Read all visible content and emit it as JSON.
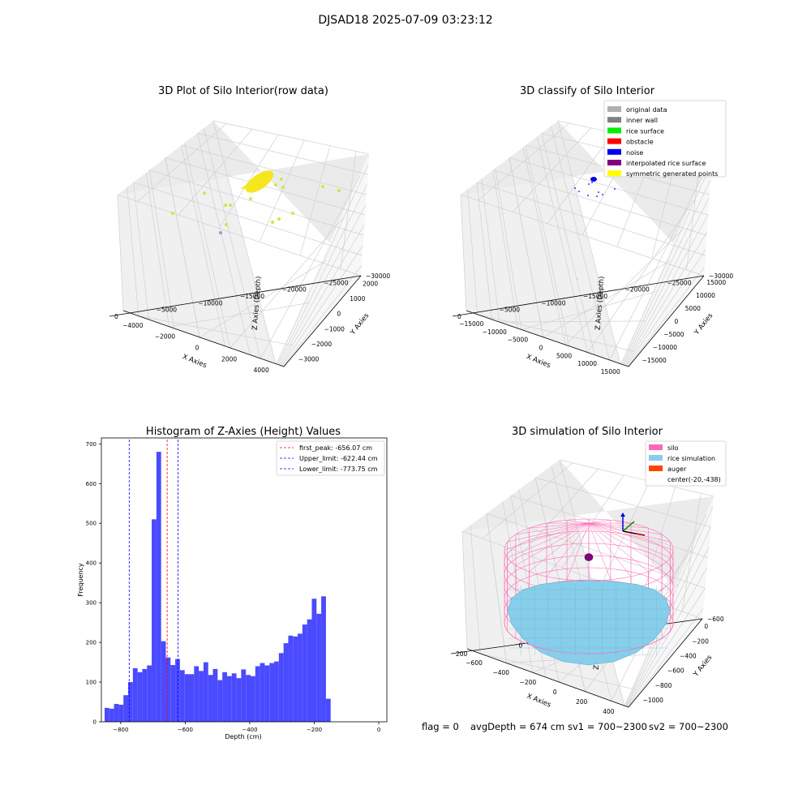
{
  "figure_title": "DJSAD18 2025-07-09 03:23:12",
  "footer": {
    "flag": "flag = 0",
    "avg_depth": "avgDepth = 674 cm",
    "sv1": "sv1 = 700~2300",
    "sv2": "sv2 = 700~2300"
  },
  "chart_data": [
    {
      "type": "scatter",
      "projection": "3d",
      "title": "3D Plot of Silo Interior(row data)",
      "xlabel": "X Axies",
      "ylabel": "Y Axies",
      "zlabel": "Z Axies (Depth)",
      "x_ticks": [
        "−4000",
        "−2000",
        "0",
        "2000",
        "4000"
      ],
      "y_ticks": [
        "−3000",
        "−2000",
        "−1000",
        "0",
        "1000",
        "2000"
      ],
      "z_ticks": [
        "0",
        "−5000",
        "−10000",
        "−15000",
        "−20000",
        "−25000",
        "−30000"
      ],
      "point_color": "#d4e34a",
      "grid": true
    },
    {
      "type": "scatter",
      "projection": "3d",
      "title": "3D classify of Silo Interior",
      "xlabel": "X Axies",
      "ylabel": "Y Axies",
      "zlabel": "Z Axies (Depth)",
      "x_ticks": [
        "−15000",
        "−10000",
        "−5000",
        "0",
        "5000",
        "10000",
        "15000"
      ],
      "y_ticks": [
        "−15000",
        "−10000",
        "−5000",
        "0",
        "5000",
        "10000",
        "15000"
      ],
      "z_ticks": [
        "0",
        "−5000",
        "−10000",
        "−15000",
        "−20000",
        "−25000",
        "−30000"
      ],
      "legend_position": "top-right",
      "legend": [
        {
          "label": "original data",
          "color": "#b0b0b0"
        },
        {
          "label": "inner wall",
          "color": "#808080"
        },
        {
          "label": "rice surface",
          "color": "#00ee00"
        },
        {
          "label": "obstacle",
          "color": "#ff0000"
        },
        {
          "label": "noise",
          "color": "#0000ee"
        },
        {
          "label": "interpolated rice surface",
          "color": "#800080"
        },
        {
          "label": "symmetric generated points",
          "color": "#ffff00"
        }
      ],
      "grid": true
    },
    {
      "type": "bar",
      "title": "Histogram of Z-Axies (Height) Values",
      "xlabel": "Depth (cm)",
      "ylabel": "Frequency",
      "xlim": [
        -860,
        25
      ],
      "ylim": [
        0,
        715
      ],
      "x_ticks": [
        -800,
        -600,
        -400,
        -200,
        0
      ],
      "y_ticks": [
        0,
        100,
        200,
        300,
        400,
        500,
        600,
        700
      ],
      "bar_color": "#4a4aff",
      "bin_start": -850,
      "bin_width": 14.6,
      "values": [
        35,
        33,
        45,
        43,
        67,
        100,
        135,
        125,
        133,
        142,
        510,
        680,
        203,
        162,
        143,
        158,
        130,
        120,
        120,
        140,
        128,
        150,
        118,
        133,
        105,
        125,
        115,
        122,
        110,
        132,
        118,
        115,
        140,
        148,
        142,
        148,
        152,
        173,
        198,
        217,
        215,
        222,
        245,
        258,
        310,
        272,
        316,
        58
      ],
      "vlines": [
        {
          "label": "first_peak: -656.07 cm",
          "x": -656.07,
          "color": "#ff0000"
        },
        {
          "label": "Upper_limit: -622.44 cm",
          "x": -622.44,
          "color": "#0000ff"
        },
        {
          "label": "Lower_limit: -773.75 cm",
          "x": -773.75,
          "color": "#0000ff"
        }
      ],
      "legend_position": "top-right",
      "grid": false
    },
    {
      "type": "scatter",
      "projection": "3d",
      "title": "3D simulation of Silo Interior",
      "xlabel": "X Axies",
      "ylabel": "Y Axies",
      "zlabel": "Z Axies (Depth)",
      "x_ticks": [
        "−600",
        "−400",
        "−200",
        "0",
        "200",
        "400"
      ],
      "y_ticks": [
        "−1000",
        "−800",
        "−600",
        "−400",
        "−200",
        "0"
      ],
      "z_ticks": [
        "200",
        "0",
        "−200",
        "−400",
        "−600"
      ],
      "legend_position": "top-right",
      "legend": [
        {
          "label": "silo",
          "color": "#ff69b4"
        },
        {
          "label": "rice simulation",
          "color": "#87ceeb"
        },
        {
          "label": "auger",
          "color": "#ff4500"
        },
        {
          "label": "center(-20,-438)",
          "color": ""
        }
      ],
      "grid": true
    }
  ]
}
